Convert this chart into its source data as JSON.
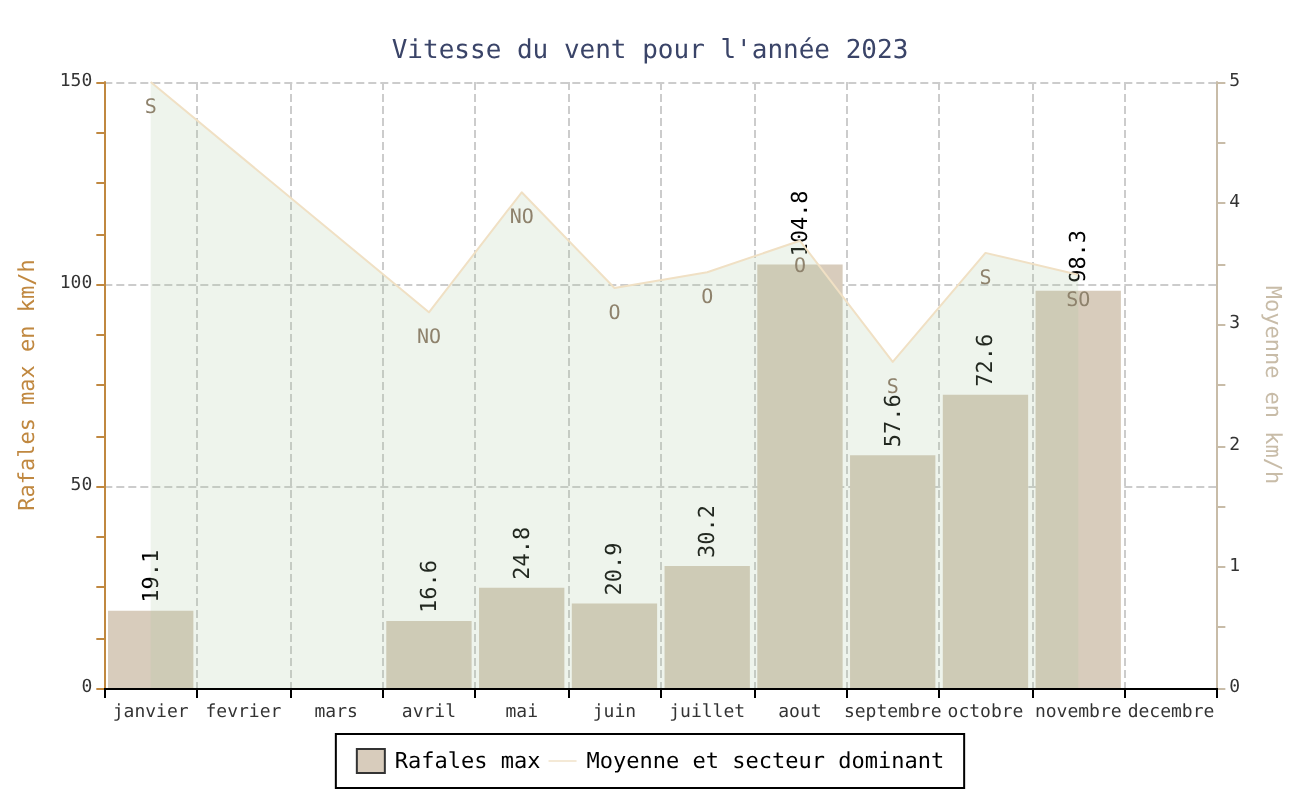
{
  "chart_data": {
    "type": "bar",
    "title": "Vitesse du vent pour l'année 2023",
    "categories": [
      "janvier",
      "fevrier",
      "mars",
      "avril",
      "mai",
      "juin",
      "juillet",
      "aout",
      "septembre",
      "octobre",
      "novembre",
      "decembre"
    ],
    "series": [
      {
        "name": "Rafales max",
        "color": "#d8ccbc",
        "values": [
          19.1,
          null,
          null,
          16.6,
          24.8,
          20.9,
          30.2,
          104.8,
          57.6,
          72.6,
          98.3,
          null
        ],
        "value_labels": [
          "19.1",
          null,
          null,
          "16.6",
          "24.8",
          "20.9",
          "30.2",
          "104.8",
          "57.6",
          "72.6",
          "98.3",
          null
        ]
      },
      {
        "name": "Moyenne et secteur dominant",
        "type": "area",
        "axis": "y2",
        "color": "#f0e0c4",
        "values": [
          5.0,
          null,
          null,
          3.1,
          4.09,
          3.3,
          3.43,
          3.69,
          2.69,
          3.59,
          3.41,
          null
        ],
        "value_labels": [
          "S",
          null,
          null,
          "NO",
          "NO",
          "O",
          "O",
          "O",
          "S",
          "S",
          "SO",
          null
        ]
      }
    ],
    "ylabel": "Rafales max en km/h",
    "y2label": "Moyenne en km/h",
    "ylim": [
      0,
      150
    ],
    "yticks": [
      0,
      {
        "value": 12.5,
        "label": null
      },
      {
        "value": 25,
        "label": null
      },
      {
        "value": 37.5,
        "label": null
      },
      50,
      {
        "value": 62.5,
        "label": null
      },
      {
        "value": 75,
        "label": null
      },
      {
        "value": 87.5,
        "label": null
      },
      100,
      {
        "value": 112.5,
        "label": null
      },
      {
        "value": 125,
        "label": null
      },
      {
        "value": 137.5,
        "label": null
      },
      150
    ],
    "y2lim": [
      0,
      5
    ],
    "y2ticks": [
      0,
      {
        "value": 0.5,
        "label": null
      },
      1,
      {
        "value": 1.5,
        "label": null
      },
      2,
      {
        "value": 2.5,
        "label": null
      },
      3,
      {
        "value": 3.5,
        "label": null
      },
      4,
      {
        "value": 4.5,
        "label": null
      },
      5
    ],
    "grid": true,
    "legend": "bottom",
    "marker": "none"
  }
}
